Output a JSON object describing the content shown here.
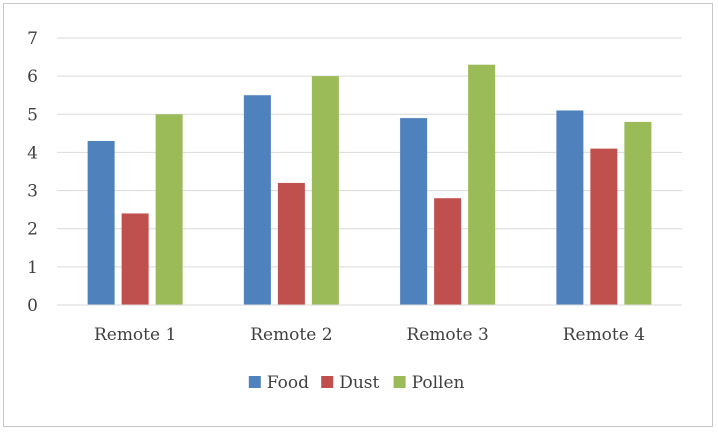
{
  "chart_data": {
    "type": "bar",
    "title": "",
    "xlabel": "",
    "ylabel": "",
    "categories": [
      "Remote 1",
      "Remote 2",
      "Remote 3",
      "Remote 4"
    ],
    "series": [
      {
        "name": "Food",
        "color": "#4f81bd",
        "values": [
          4.3,
          5.5,
          4.9,
          5.1
        ]
      },
      {
        "name": "Dust",
        "color": "#c0504d",
        "values": [
          2.4,
          3.2,
          2.8,
          4.1
        ]
      },
      {
        "name": "Pollen",
        "color": "#9bbb59",
        "values": [
          5.0,
          6.0,
          6.3,
          4.8
        ]
      }
    ],
    "ylim": [
      0,
      7
    ],
    "yticks": [
      "0",
      "1",
      "2",
      "3",
      "4",
      "5",
      "6",
      "7"
    ],
    "grid": true,
    "legend_position": "bottom"
  }
}
